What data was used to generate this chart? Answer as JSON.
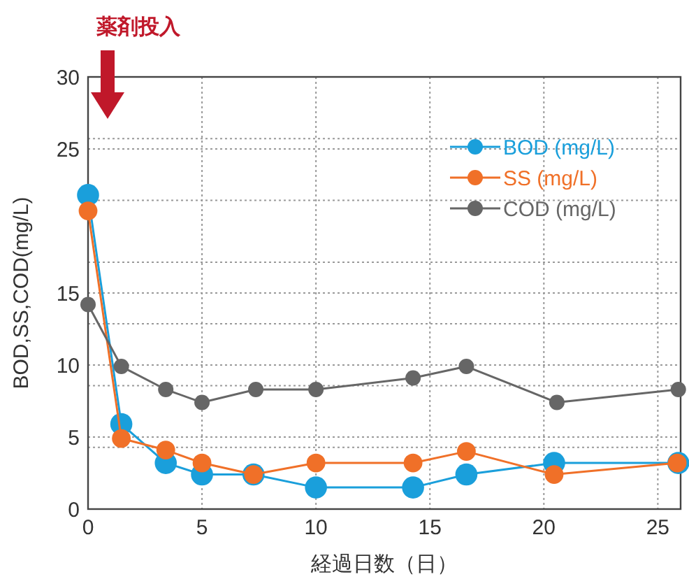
{
  "chart_data": {
    "type": "line",
    "xlabel": "経過日数（日）",
    "ylabel": "BOD,SS,COD(mg/L)",
    "annotations": [
      "薬剤投入"
    ],
    "xlim": [
      0,
      26
    ],
    "xticks": [
      0,
      5,
      10,
      15,
      20,
      25
    ],
    "ylim": [
      0,
      30
    ],
    "yticks": [
      0,
      {
        "value": 4.29,
        "label": null
      },
      5,
      {
        "value": 8.57,
        "label": null
      },
      10,
      {
        "value": 12.86,
        "label": null
      },
      15,
      {
        "value": 17.14,
        "label": null
      },
      {
        "value": 21.43,
        "label": null
      },
      25,
      {
        "value": 25.71,
        "label": null
      },
      30
    ],
    "grid": true,
    "legend": "top right",
    "marker": "circle",
    "line_style": "solid",
    "series": [
      {
        "name": "BOD (mg/L)",
        "color": "#1a9fdb",
        "x": [
          0,
          1.46,
          3.41,
          5,
          7.26,
          10,
          14.26,
          16.6,
          20.45,
          25.9
        ],
        "values": [
          21.8,
          5.9,
          3.2,
          2.4,
          2.4,
          1.5,
          1.5,
          2.4,
          3.2,
          3.2
        ]
      },
      {
        "name": "SS (mg/L)",
        "color": "#f07028",
        "x": [
          0,
          1.46,
          3.41,
          5,
          7.26,
          10,
          14.26,
          16.6,
          20.45,
          25.85
        ],
        "values": [
          20.7,
          4.9,
          4.1,
          3.2,
          2.4,
          3.2,
          3.2,
          4.0,
          2.4,
          3.2
        ]
      },
      {
        "name": "COD (mg/L)",
        "color": "#666666",
        "x": [
          0,
          1.46,
          3.41,
          5,
          7.36,
          10,
          14.26,
          16.6,
          20.57,
          25.9
        ],
        "values": [
          14.2,
          9.9,
          8.3,
          7.4,
          8.3,
          8.3,
          9.1,
          9.9,
          7.4,
          8.3
        ]
      }
    ]
  }
}
